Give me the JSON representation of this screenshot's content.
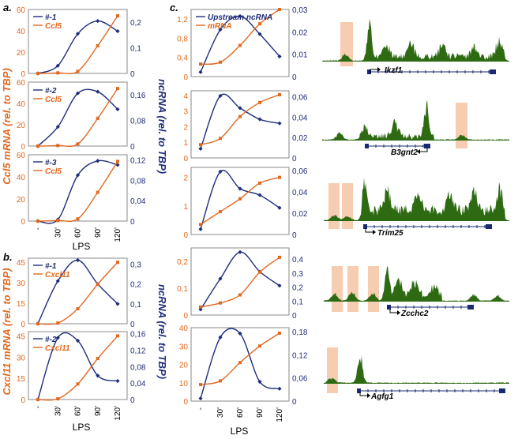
{
  "colors": {
    "ncrna": "#1f2d7a",
    "mrna": "#e2681f",
    "track": "#2d6a12",
    "gene": "#1a2a70",
    "highlight": "#f6c4a4",
    "frame": "#8a8a8a",
    "text": "#000000"
  },
  "panel_a": {
    "letter": "a.",
    "left_axis_title": "Ccl5 mRNA (rel. to TBP)",
    "right_axis_title": "ncRNA (rel. to TBP)",
    "x_axis_title": "LPS"
  },
  "panel_b": {
    "letter": "b.",
    "left_axis_title": "Cxcl11 mRNA (rel. to TBP)",
    "right_axis_title": "ncRNA (rel. to TBP)",
    "x_axis_title": "LPS"
  },
  "panel_c": {
    "letter": "c.",
    "x_axis_title": "LPS"
  },
  "tracks": [
    {
      "gene": "Ikzf1"
    },
    {
      "gene": "B3gnt2"
    },
    {
      "gene": "Trim25"
    },
    {
      "gene": "Zcchc2"
    },
    {
      "gene": "Agfg1"
    }
  ],
  "chart_data": [
    {
      "id": "a1",
      "type": "line",
      "categories": [
        "-",
        "30'",
        "60'",
        "90'",
        "120'"
      ],
      "ylim_left": [
        0,
        60
      ],
      "yticks_left": [
        "0",
        "20",
        "40",
        "60"
      ],
      "ylim_right": [
        0,
        0.25
      ],
      "yticks_right": [
        "0",
        "0,1",
        "0,2"
      ],
      "series": [
        {
          "name": "#-1",
          "axis": "right",
          "values": [
            0.0,
            0.03,
            0.155,
            0.205,
            0.165
          ]
        },
        {
          "name": "Ccl5",
          "axis": "left",
          "values": [
            0,
            0.5,
            2,
            26,
            54
          ]
        }
      ]
    },
    {
      "id": "a2",
      "type": "line",
      "categories": [
        "-",
        "30'",
        "60'",
        "90'",
        "120'"
      ],
      "ylim_left": [
        0,
        60
      ],
      "yticks_left": [
        "0",
        "20",
        "40",
        "60"
      ],
      "ylim_right": [
        0,
        0.2
      ],
      "yticks_right": [
        "0",
        "0,08",
        "0,16"
      ],
      "series": [
        {
          "name": "#-2",
          "axis": "right",
          "values": [
            0.0,
            0.06,
            0.165,
            0.17,
            0.115
          ]
        },
        {
          "name": "Ccl5",
          "axis": "left",
          "values": [
            0,
            0.5,
            2,
            26,
            54
          ]
        }
      ]
    },
    {
      "id": "a3",
      "type": "line",
      "categories": [
        "-",
        "30'",
        "60'",
        "90'",
        "120'"
      ],
      "xticks": [
        "-",
        "30'",
        "60'",
        "90'",
        "120'"
      ],
      "ylim_left": [
        0,
        60
      ],
      "yticks_left": [
        "0",
        "20",
        "40",
        "60"
      ],
      "ylim_right": [
        0,
        0.13
      ],
      "yticks_right": [
        "0",
        "0,04",
        "0,08",
        "0,12"
      ],
      "series": [
        {
          "name": "#-3",
          "axis": "right",
          "values": [
            0.0,
            0.003,
            0.09,
            0.118,
            0.11
          ]
        },
        {
          "name": "Ccl5",
          "axis": "left",
          "values": [
            0,
            0.5,
            2,
            26,
            54
          ]
        }
      ]
    },
    {
      "id": "b1",
      "type": "line",
      "categories": [
        "-",
        "30'",
        "60'",
        "90'",
        "120'"
      ],
      "ylim_left": [
        0,
        48
      ],
      "yticks_left": [
        "0",
        "15",
        "30",
        "45"
      ],
      "ylim_right": [
        0,
        0.33
      ],
      "yticks_right": [
        "0",
        "0,1",
        "0,2",
        "0,3"
      ],
      "series": [
        {
          "name": "#-1",
          "axis": "right",
          "values": [
            0.0,
            0.215,
            0.32,
            0.2,
            0.1
          ]
        },
        {
          "name": "Cxcl11",
          "axis": "left",
          "values": [
            0,
            0.5,
            11,
            29,
            45
          ]
        }
      ]
    },
    {
      "id": "b2",
      "type": "line",
      "categories": [
        "-",
        "30'",
        "60'",
        "90'",
        "120'"
      ],
      "xticks": [
        "-",
        "30'",
        "60'",
        "90'",
        "120'"
      ],
      "ylim_left": [
        0,
        48
      ],
      "yticks_left": [
        "0",
        "15",
        "30",
        "45"
      ],
      "ylim_right": [
        0,
        0.165
      ],
      "yticks_right": [
        "0",
        "0,04",
        "0,08",
        "0,12",
        "0,16"
      ],
      "series": [
        {
          "name": "#-2",
          "axis": "right",
          "values": [
            0.0,
            0.15,
            0.143,
            0.058,
            0.045
          ]
        },
        {
          "name": "Cxcl11",
          "axis": "left",
          "values": [
            0,
            0.5,
            11,
            29,
            45
          ]
        }
      ]
    },
    {
      "id": "c1",
      "type": "line",
      "categories": [
        "-",
        "30'",
        "60'",
        "90'",
        "120'"
      ],
      "ylim_left": [
        0,
        1.4
      ],
      "yticks_left": [
        "0",
        "0,4",
        "0,8",
        "1,2"
      ],
      "ylim_right": [
        0,
        0.03
      ],
      "yticks_right": [
        "0",
        "0,01",
        "0,02",
        "0,03"
      ],
      "series": [
        {
          "name": "Upstream ncRNA",
          "axis": "right",
          "values": [
            0.002,
            0.021,
            0.027,
            0.019,
            0.009
          ]
        },
        {
          "name": "mRNA",
          "axis": "left",
          "values": [
            0.26,
            0.3,
            0.65,
            1.1,
            1.4
          ]
        }
      ]
    },
    {
      "id": "c2",
      "type": "line",
      "categories": [
        "-",
        "30'",
        "60'",
        "90'",
        "120'"
      ],
      "ylim_left": [
        0,
        4.3
      ],
      "yticks_left": [
        "0",
        "1",
        "2",
        "3",
        "4"
      ],
      "ylim_right": [
        0,
        0.066
      ],
      "yticks_right": [
        "0",
        "0,02",
        "0,04",
        "0,06"
      ],
      "series": [
        {
          "name": "Upstream ncRNA",
          "axis": "right",
          "values": [
            0.009,
            0.061,
            0.049,
            0.038,
            0.034
          ]
        },
        {
          "name": "mRNA",
          "axis": "left",
          "values": [
            0.85,
            1.25,
            2.65,
            3.55,
            4.05
          ]
        }
      ]
    },
    {
      "id": "c3",
      "type": "line",
      "categories": [
        "-",
        "30'",
        "60'",
        "90'",
        "120'"
      ],
      "ylim_left": [
        0,
        2.35
      ],
      "yticks_left": [
        "0",
        "1",
        "2"
      ],
      "ylim_right": [
        0,
        0.063
      ],
      "yticks_right": [
        "0",
        "0,02",
        "0,04",
        "0,06"
      ],
      "series": [
        {
          "name": "Upstream ncRNA",
          "axis": "right",
          "values": [
            0.005,
            0.059,
            0.043,
            0.037,
            0.025
          ]
        },
        {
          "name": "mRNA",
          "axis": "left",
          "values": [
            0.35,
            0.8,
            1.25,
            1.8,
            2.0
          ]
        }
      ]
    },
    {
      "id": "c4",
      "type": "line",
      "categories": [
        "-",
        "30'",
        "60'",
        "90'",
        "120'"
      ],
      "ylim_left": [
        0,
        0.25
      ],
      "yticks_left": [
        "0",
        "0,1",
        "0,2"
      ],
      "ylim_right": [
        0,
        0.48
      ],
      "yticks_right": [
        "0",
        "0,1",
        "0,2",
        "0,3",
        "0,4"
      ],
      "series": [
        {
          "name": "Upstream ncRNA",
          "axis": "right",
          "values": [
            0.04,
            0.26,
            0.45,
            0.31,
            0.21
          ]
        },
        {
          "name": "mRNA",
          "axis": "left",
          "values": [
            0.03,
            0.045,
            0.075,
            0.16,
            0.215
          ]
        }
      ]
    },
    {
      "id": "c5",
      "type": "line",
      "categories": [
        "-",
        "30'",
        "60'",
        "90'",
        "120'"
      ],
      "xticks": [
        "-",
        "30'",
        "60'",
        "90'",
        "120'"
      ],
      "ylim_left": [
        0,
        40
      ],
      "yticks_left": [
        "0",
        "10",
        "20",
        "30",
        "40"
      ],
      "ylim_right": [
        0,
        0.19
      ],
      "yticks_right": [
        "0",
        "0,06",
        "0,12",
        "0,18"
      ],
      "series": [
        {
          "name": "Upstream ncRNA",
          "axis": "right",
          "values": [
            0.007,
            0.165,
            0.175,
            0.05,
            0.032
          ]
        },
        {
          "name": "mRNA",
          "axis": "left",
          "values": [
            9,
            11,
            21,
            30,
            37
          ]
        }
      ]
    }
  ]
}
